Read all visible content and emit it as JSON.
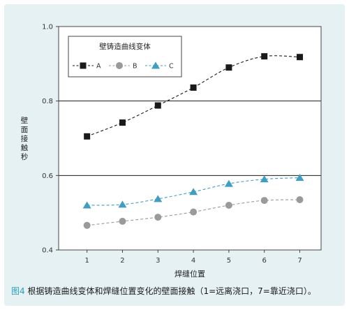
{
  "chart_data": {
    "type": "line",
    "title": "",
    "xlabel": "焊缝位置",
    "ylabel": "壁面接触秒",
    "x": [
      1,
      2,
      3,
      4,
      5,
      6,
      7
    ],
    "xlim": [
      0.2,
      7.6
    ],
    "ylim": [
      0.4,
      1.0
    ],
    "y_ticks": [
      "0.4",
      "0.6",
      "0.8",
      "1.0"
    ],
    "x_ticks": [
      "1",
      "2",
      "3",
      "4",
      "5",
      "6",
      "7"
    ],
    "grid": "horizontal",
    "legend": {
      "title": "壁铸造曲线变体",
      "placement": "top-left"
    },
    "series": [
      {
        "name": "A",
        "values": [
          0.705,
          0.742,
          0.788,
          0.836,
          0.89,
          0.92,
          0.918
        ],
        "color": "#1a1a1a",
        "marker": "square"
      },
      {
        "name": "B",
        "values": [
          0.466,
          0.477,
          0.488,
          0.502,
          0.52,
          0.533,
          0.535
        ],
        "color": "#9a9a9a",
        "marker": "circle"
      },
      {
        "name": "C",
        "values": [
          0.52,
          0.522,
          0.537,
          0.556,
          0.578,
          0.59,
          0.594
        ],
        "color": "#3f9ec1",
        "marker": "triangle"
      }
    ]
  },
  "caption": {
    "figure_no": "图4",
    "text": " 根据铸造曲线变体和焊缝位置变化的壁面接触（1=远离浇口，7=靠近浇口）。"
  }
}
